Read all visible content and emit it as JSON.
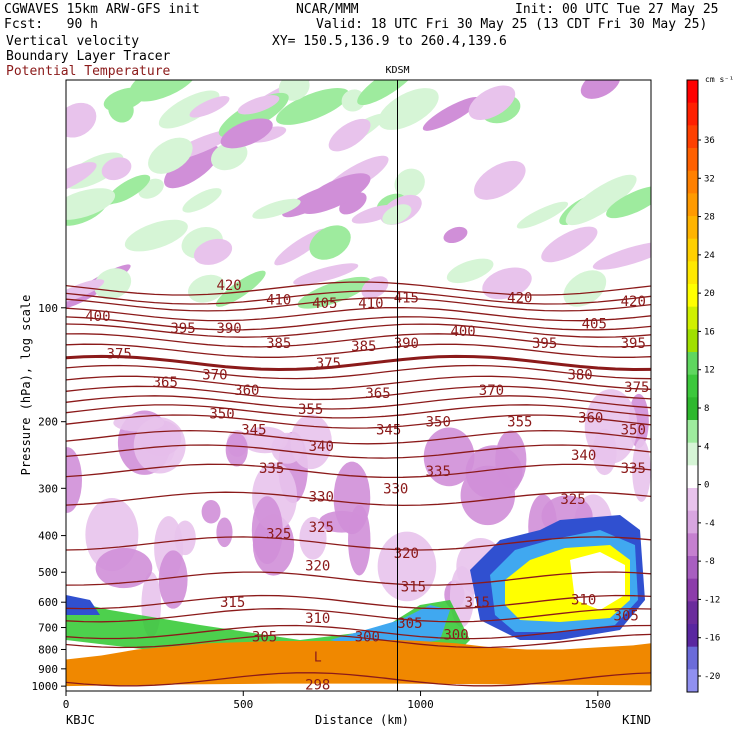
{
  "header": {
    "model": "CGWAVES 15km ARW-GFS init",
    "forecast": "Fcst:   90 h",
    "org": "NCAR/MMM",
    "init": "Init: 00 UTC Tue 27 May 25",
    "valid": "Valid: 18 UTC Fri 30 May 25 (13 CDT Fri 30 May 25)",
    "xy": "XY= 150.5,136.9 to 260.4,139.6",
    "field1": "Vertical velocity",
    "field2": "Boundary Layer Tracer",
    "field3": "Potential Temperature"
  },
  "colors": {
    "theta_contour": "#8b1a1a",
    "terrain": "#f08800",
    "ticks_up": [
      "#ffffff",
      "#d6f5d6",
      "#9eeb9e",
      "#5fd75f",
      "#2ec82e",
      "#27b327",
      "#ffff00",
      "#ffd000",
      "#ffb000",
      "#ff8c00",
      "#ff6000",
      "#ff3000",
      "#ff0000"
    ],
    "ticks_down": [
      "#e8c3ec",
      "#d08fd8",
      "#b865c4",
      "#9a3fab",
      "#7a2a9c",
      "#5a27a0",
      "#6b6bd9",
      "#9090f0"
    ]
  },
  "chart_data": {
    "type": "cross-section",
    "xlabel": "Distance (km)",
    "ylabel": "Pressure (hPa), log scale",
    "x_ticks": [
      0,
      500,
      1000,
      1500
    ],
    "xlim": [
      0,
      1650
    ],
    "y_ticks": [
      100,
      200,
      300,
      400,
      500,
      600,
      700,
      800,
      900,
      1000
    ],
    "ylim": [
      1030,
      25
    ],
    "y_scale": "log",
    "station_left": "KBJC",
    "station_right": "KIND",
    "station_mid": "KDSM",
    "station_mid_km": 935,
    "colorbar": {
      "unit": "cm s⁻¹",
      "labels": [
        36,
        32,
        28,
        24,
        20,
        16,
        12,
        8,
        4,
        0,
        -4,
        -8,
        -12,
        -16,
        -20
      ]
    },
    "theta_levels": [
      298,
      300,
      305,
      310,
      315,
      320,
      325,
      330,
      335,
      340,
      345,
      350,
      355,
      360,
      365,
      370,
      375,
      380,
      385,
      390,
      395,
      400,
      405,
      410,
      415,
      420
    ],
    "theta_labels": [
      {
        "text": "420",
        "km": 460,
        "p": 87
      },
      {
        "text": "410",
        "km": 600,
        "p": 95
      },
      {
        "text": "405",
        "km": 730,
        "p": 97
      },
      {
        "text": "410",
        "km": 860,
        "p": 97
      },
      {
        "text": "415",
        "km": 960,
        "p": 94
      },
      {
        "text": "420",
        "km": 1280,
        "p": 94
      },
      {
        "text": "420",
        "km": 1600,
        "p": 96
      },
      {
        "text": "400",
        "km": 90,
        "p": 105
      },
      {
        "text": "395",
        "km": 330,
        "p": 113
      },
      {
        "text": "390",
        "km": 460,
        "p": 113
      },
      {
        "text": "385",
        "km": 600,
        "p": 124
      },
      {
        "text": "385",
        "km": 840,
        "p": 126
      },
      {
        "text": "390",
        "km": 960,
        "p": 124
      },
      {
        "text": "400",
        "km": 1120,
        "p": 115
      },
      {
        "text": "405",
        "km": 1490,
        "p": 110
      },
      {
        "text": "395",
        "km": 1350,
        "p": 124
      },
      {
        "text": "395",
        "km": 1600,
        "p": 124
      },
      {
        "text": "375",
        "km": 150,
        "p": 132
      },
      {
        "text": "375",
        "km": 740,
        "p": 140
      },
      {
        "text": "365",
        "km": 280,
        "p": 157
      },
      {
        "text": "370",
        "km": 420,
        "p": 150
      },
      {
        "text": "380",
        "km": 1450,
        "p": 150
      },
      {
        "text": "360",
        "km": 510,
        "p": 165
      },
      {
        "text": "365",
        "km": 880,
        "p": 168
      },
      {
        "text": "370",
        "km": 1200,
        "p": 165
      },
      {
        "text": "375",
        "km": 1610,
        "p": 162
      },
      {
        "text": "350",
        "km": 440,
        "p": 190
      },
      {
        "text": "355",
        "km": 690,
        "p": 185
      },
      {
        "text": "350",
        "km": 1050,
        "p": 200
      },
      {
        "text": "355",
        "km": 1280,
        "p": 200
      },
      {
        "text": "360",
        "km": 1480,
        "p": 195
      },
      {
        "text": "345",
        "km": 530,
        "p": 210
      },
      {
        "text": "345",
        "km": 910,
        "p": 210
      },
      {
        "text": "350",
        "km": 1600,
        "p": 210
      },
      {
        "text": "340",
        "km": 720,
        "p": 232
      },
      {
        "text": "340",
        "km": 1460,
        "p": 245
      },
      {
        "text": "335",
        "km": 580,
        "p": 265
      },
      {
        "text": "335",
        "km": 1050,
        "p": 270
      },
      {
        "text": "335",
        "km": 1600,
        "p": 265
      },
      {
        "text": "330",
        "km": 720,
        "p": 315
      },
      {
        "text": "330",
        "km": 930,
        "p": 300
      },
      {
        "text": "325",
        "km": 1430,
        "p": 320
      },
      {
        "text": "325",
        "km": 600,
        "p": 395
      },
      {
        "text": "325",
        "km": 720,
        "p": 380
      },
      {
        "text": "320",
        "km": 710,
        "p": 480
      },
      {
        "text": "320",
        "km": 960,
        "p": 445
      },
      {
        "text": "315",
        "km": 470,
        "p": 600
      },
      {
        "text": "315",
        "km": 980,
        "p": 545
      },
      {
        "text": "315",
        "km": 1160,
        "p": 600
      },
      {
        "text": "310",
        "km": 710,
        "p": 660
      },
      {
        "text": "310",
        "km": 1460,
        "p": 590
      },
      {
        "text": "305",
        "km": 560,
        "p": 740
      },
      {
        "text": "305",
        "km": 970,
        "p": 680
      },
      {
        "text": "305",
        "km": 1580,
        "p": 650
      },
      {
        "text": "300",
        "km": 850,
        "p": 740
      },
      {
        "text": "300",
        "km": 1100,
        "p": 730
      },
      {
        "text": "298",
        "km": 710,
        "p": 990
      }
    ],
    "terrain_pressure": [
      [
        0,
        850
      ],
      [
        100,
        830
      ],
      [
        200,
        800
      ],
      [
        400,
        770
      ],
      [
        600,
        760
      ],
      [
        800,
        760
      ],
      [
        935,
        755
      ],
      [
        1000,
        760
      ],
      [
        1100,
        770
      ],
      [
        1200,
        790
      ],
      [
        1300,
        800
      ],
      [
        1400,
        800
      ],
      [
        1500,
        790
      ],
      [
        1600,
        780
      ],
      [
        1650,
        770
      ]
    ],
    "low_marker": {
      "text": "L",
      "km": 710,
      "p": 860
    }
  }
}
